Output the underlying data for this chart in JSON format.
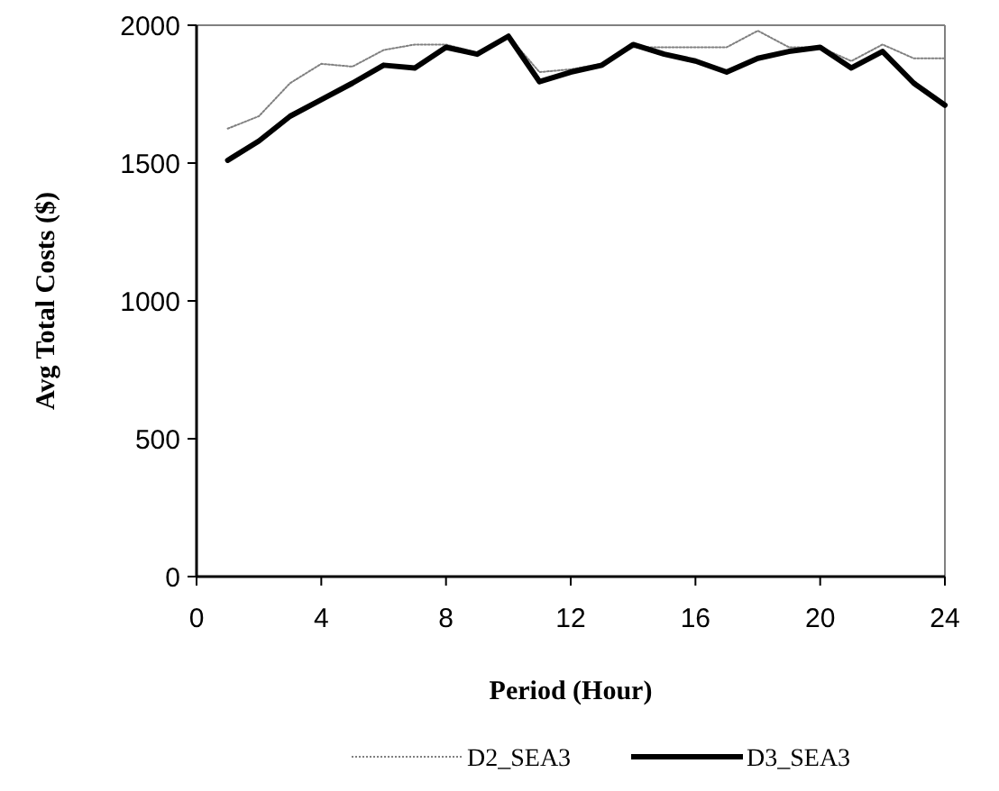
{
  "chart_data": {
    "type": "line",
    "xlabel": "Period (Hour)",
    "ylabel": "Avg Total Costs ($)",
    "x": [
      1,
      2,
      3,
      4,
      5,
      6,
      7,
      8,
      9,
      10,
      11,
      12,
      13,
      14,
      15,
      16,
      17,
      18,
      19,
      20,
      21,
      22,
      23,
      24
    ],
    "series": [
      {
        "name": "D2_SEA3",
        "color": "#808080",
        "line_style": "dotted",
        "values": [
          1625,
          1670,
          1790,
          1860,
          1850,
          1910,
          1930,
          1930,
          1900,
          1960,
          1830,
          1840,
          1860,
          1920,
          1920,
          1920,
          1920,
          1980,
          1920,
          1920,
          1870,
          1930,
          1880,
          1880
        ]
      },
      {
        "name": "D3_SEA3",
        "color": "#000000",
        "line_style": "solid",
        "values": [
          1510,
          1580,
          1670,
          1730,
          1790,
          1855,
          1845,
          1920,
          1895,
          1960,
          1795,
          1830,
          1855,
          1930,
          1895,
          1870,
          1830,
          1880,
          1905,
          1920,
          1845,
          1905,
          1790,
          1710
        ]
      }
    ],
    "xlim": [
      0,
      24
    ],
    "xticks": [
      0,
      4,
      8,
      12,
      16,
      20,
      24
    ],
    "ylim": [
      0,
      2000
    ],
    "yticks": [
      0,
      500,
      1000,
      1500,
      2000
    ],
    "grid": false,
    "legend": "bottom",
    "marker": "none"
  }
}
